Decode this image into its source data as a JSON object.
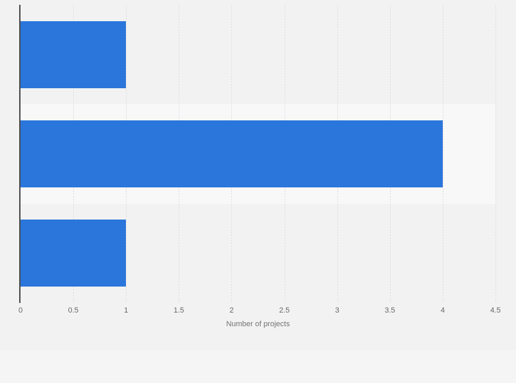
{
  "page": {
    "background_color": "#f2f2f2",
    "footer_strip_color": "#f5f5f5"
  },
  "chart_data": {
    "type": "bar",
    "orientation": "horizontal",
    "title": "",
    "xlabel": "Number of projects",
    "ylabel": "",
    "categories": [
      "",
      "",
      ""
    ],
    "values": [
      1,
      4,
      1
    ],
    "xlim": [
      0,
      4.5
    ],
    "xticks": [
      "0",
      "0.5",
      "1",
      "1.5",
      "2",
      "2.5",
      "3",
      "3.5",
      "4",
      "4.5"
    ],
    "grid": true,
    "legend": false,
    "bar_color": "#2b76db",
    "alt_row_band_color": "#f8f8f8",
    "gridline_color": "#dcdcdc",
    "axis_line_color": "#4d4d4d",
    "tick_label_color": "#666666",
    "axis_title_color": "#737373"
  }
}
